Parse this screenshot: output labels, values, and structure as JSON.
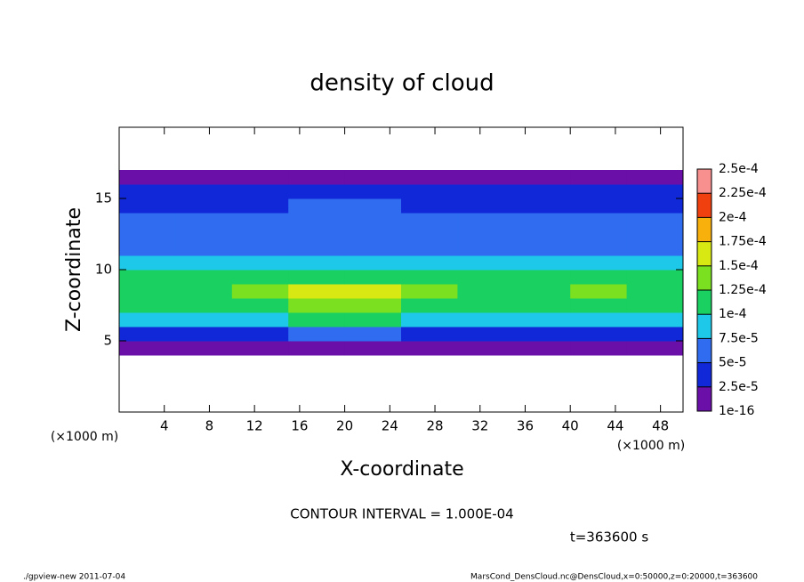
{
  "chart_data": {
    "type": "heatmap",
    "title": "density of cloud",
    "x_label": "X-coordinate",
    "y_label": "Z-coordinate",
    "x_unit_label": "(×1000 m)",
    "y_unit_label": "(×1000 m)",
    "contour_note": "CONTOUR INTERVAL = 1.000E-04",
    "time_note": "t=363600 s",
    "footer_left": "./gpview-new  2011-07-04",
    "footer_right": "MarsCond_DensCloud.nc@DensCloud,x=0:50000,z=0:20000,t=363600",
    "xlim": [
      0,
      50
    ],
    "xticks": [
      4,
      8,
      12,
      16,
      20,
      24,
      28,
      32,
      36,
      40,
      44,
      48
    ],
    "ylim": [
      0,
      20
    ],
    "yticks": [
      5,
      10,
      15
    ],
    "x": [
      2.5,
      7.5,
      12.5,
      17.5,
      22.5,
      27.5,
      32.5,
      37.5,
      42.5,
      47.5
    ],
    "z": [
      4.5,
      5.5,
      6.5,
      7.5,
      8.5,
      9.5,
      10.5,
      11.5,
      12.5,
      13.5,
      14.5,
      15.5,
      16.5
    ],
    "values": [
      [
        1e-05,
        1e-05,
        1e-05,
        1e-05,
        1e-05,
        1e-05,
        1e-05,
        1e-05,
        1e-05,
        1e-05
      ],
      [
        4e-05,
        4e-05,
        4e-05,
        5e-05,
        5e-05,
        4e-05,
        4e-05,
        4e-05,
        4e-05,
        4e-05
      ],
      [
        9e-05,
        9e-05,
        9e-05,
        0.0001,
        0.0001,
        9e-05,
        9e-05,
        9e-05,
        9e-05,
        9e-05
      ],
      [
        0.00011,
        0.00011,
        0.00012,
        0.00013,
        0.00013,
        0.00012,
        0.00011,
        0.00011,
        0.00012,
        0.00011
      ],
      [
        0.00012,
        0.00012,
        0.00013,
        0.00016,
        0.00015,
        0.00013,
        0.00012,
        0.00012,
        0.00013,
        0.00012
      ],
      [
        0.0001,
        0.0001,
        0.00011,
        0.00012,
        0.00012,
        0.00011,
        0.0001,
        0.0001,
        0.00011,
        0.0001
      ],
      [
        8e-05,
        8e-05,
        8e-05,
        8e-05,
        8e-05,
        8e-05,
        8e-05,
        8e-05,
        8e-05,
        8e-05
      ],
      [
        7e-05,
        7e-05,
        7e-05,
        6e-05,
        6e-05,
        7e-05,
        7e-05,
        7e-05,
        7e-05,
        7e-05
      ],
      [
        6e-05,
        6e-05,
        6e-05,
        6e-05,
        6e-05,
        6e-05,
        6e-05,
        6e-05,
        6e-05,
        6e-05
      ],
      [
        5e-05,
        5e-05,
        5e-05,
        5e-05,
        5e-05,
        5e-05,
        5e-05,
        5e-05,
        5e-05,
        5e-05
      ],
      [
        4e-05,
        4e-05,
        4e-05,
        5e-05,
        5e-05,
        4e-05,
        4e-05,
        4e-05,
        4e-05,
        4e-05
      ],
      [
        3e-05,
        3e-05,
        3e-05,
        4e-05,
        4e-05,
        3e-05,
        3e-05,
        3e-05,
        3e-05,
        3e-05
      ],
      [
        1e-05,
        1e-05,
        1e-05,
        1e-05,
        1e-05,
        1e-05,
        1e-05,
        1e-05,
        1e-05,
        1e-05
      ]
    ],
    "levels": [
      1e-16,
      {
        "value": 2.5e-05,
        "label": "2.5e-5"
      },
      {
        "value": 5e-05,
        "label": "5e-5"
      },
      {
        "value": 7.5e-05,
        "label": "7.5e-5"
      },
      {
        "value": 0.0001,
        "label": "1e-4"
      },
      {
        "value": 0.000125,
        "label": "1.25e-4"
      },
      {
        "value": 0.00015,
        "label": "1.5e-4"
      },
      {
        "value": 0.000175,
        "label": "1.75e-4"
      },
      {
        "value": 0.0002,
        "label": "2e-4"
      },
      {
        "value": 0.000225,
        "label": "2.25e-4"
      },
      {
        "value": 0.00025,
        "label": "2.5e-4"
      }
    ],
    "colors": [
      "#6a0fa8",
      "#1028d8",
      "#2f6cf0",
      "#1ec8e8",
      "#19d060",
      "#7ae020",
      "#d8e812",
      "#f8b00c",
      "#f04010",
      "#f89090"
    ]
  }
}
